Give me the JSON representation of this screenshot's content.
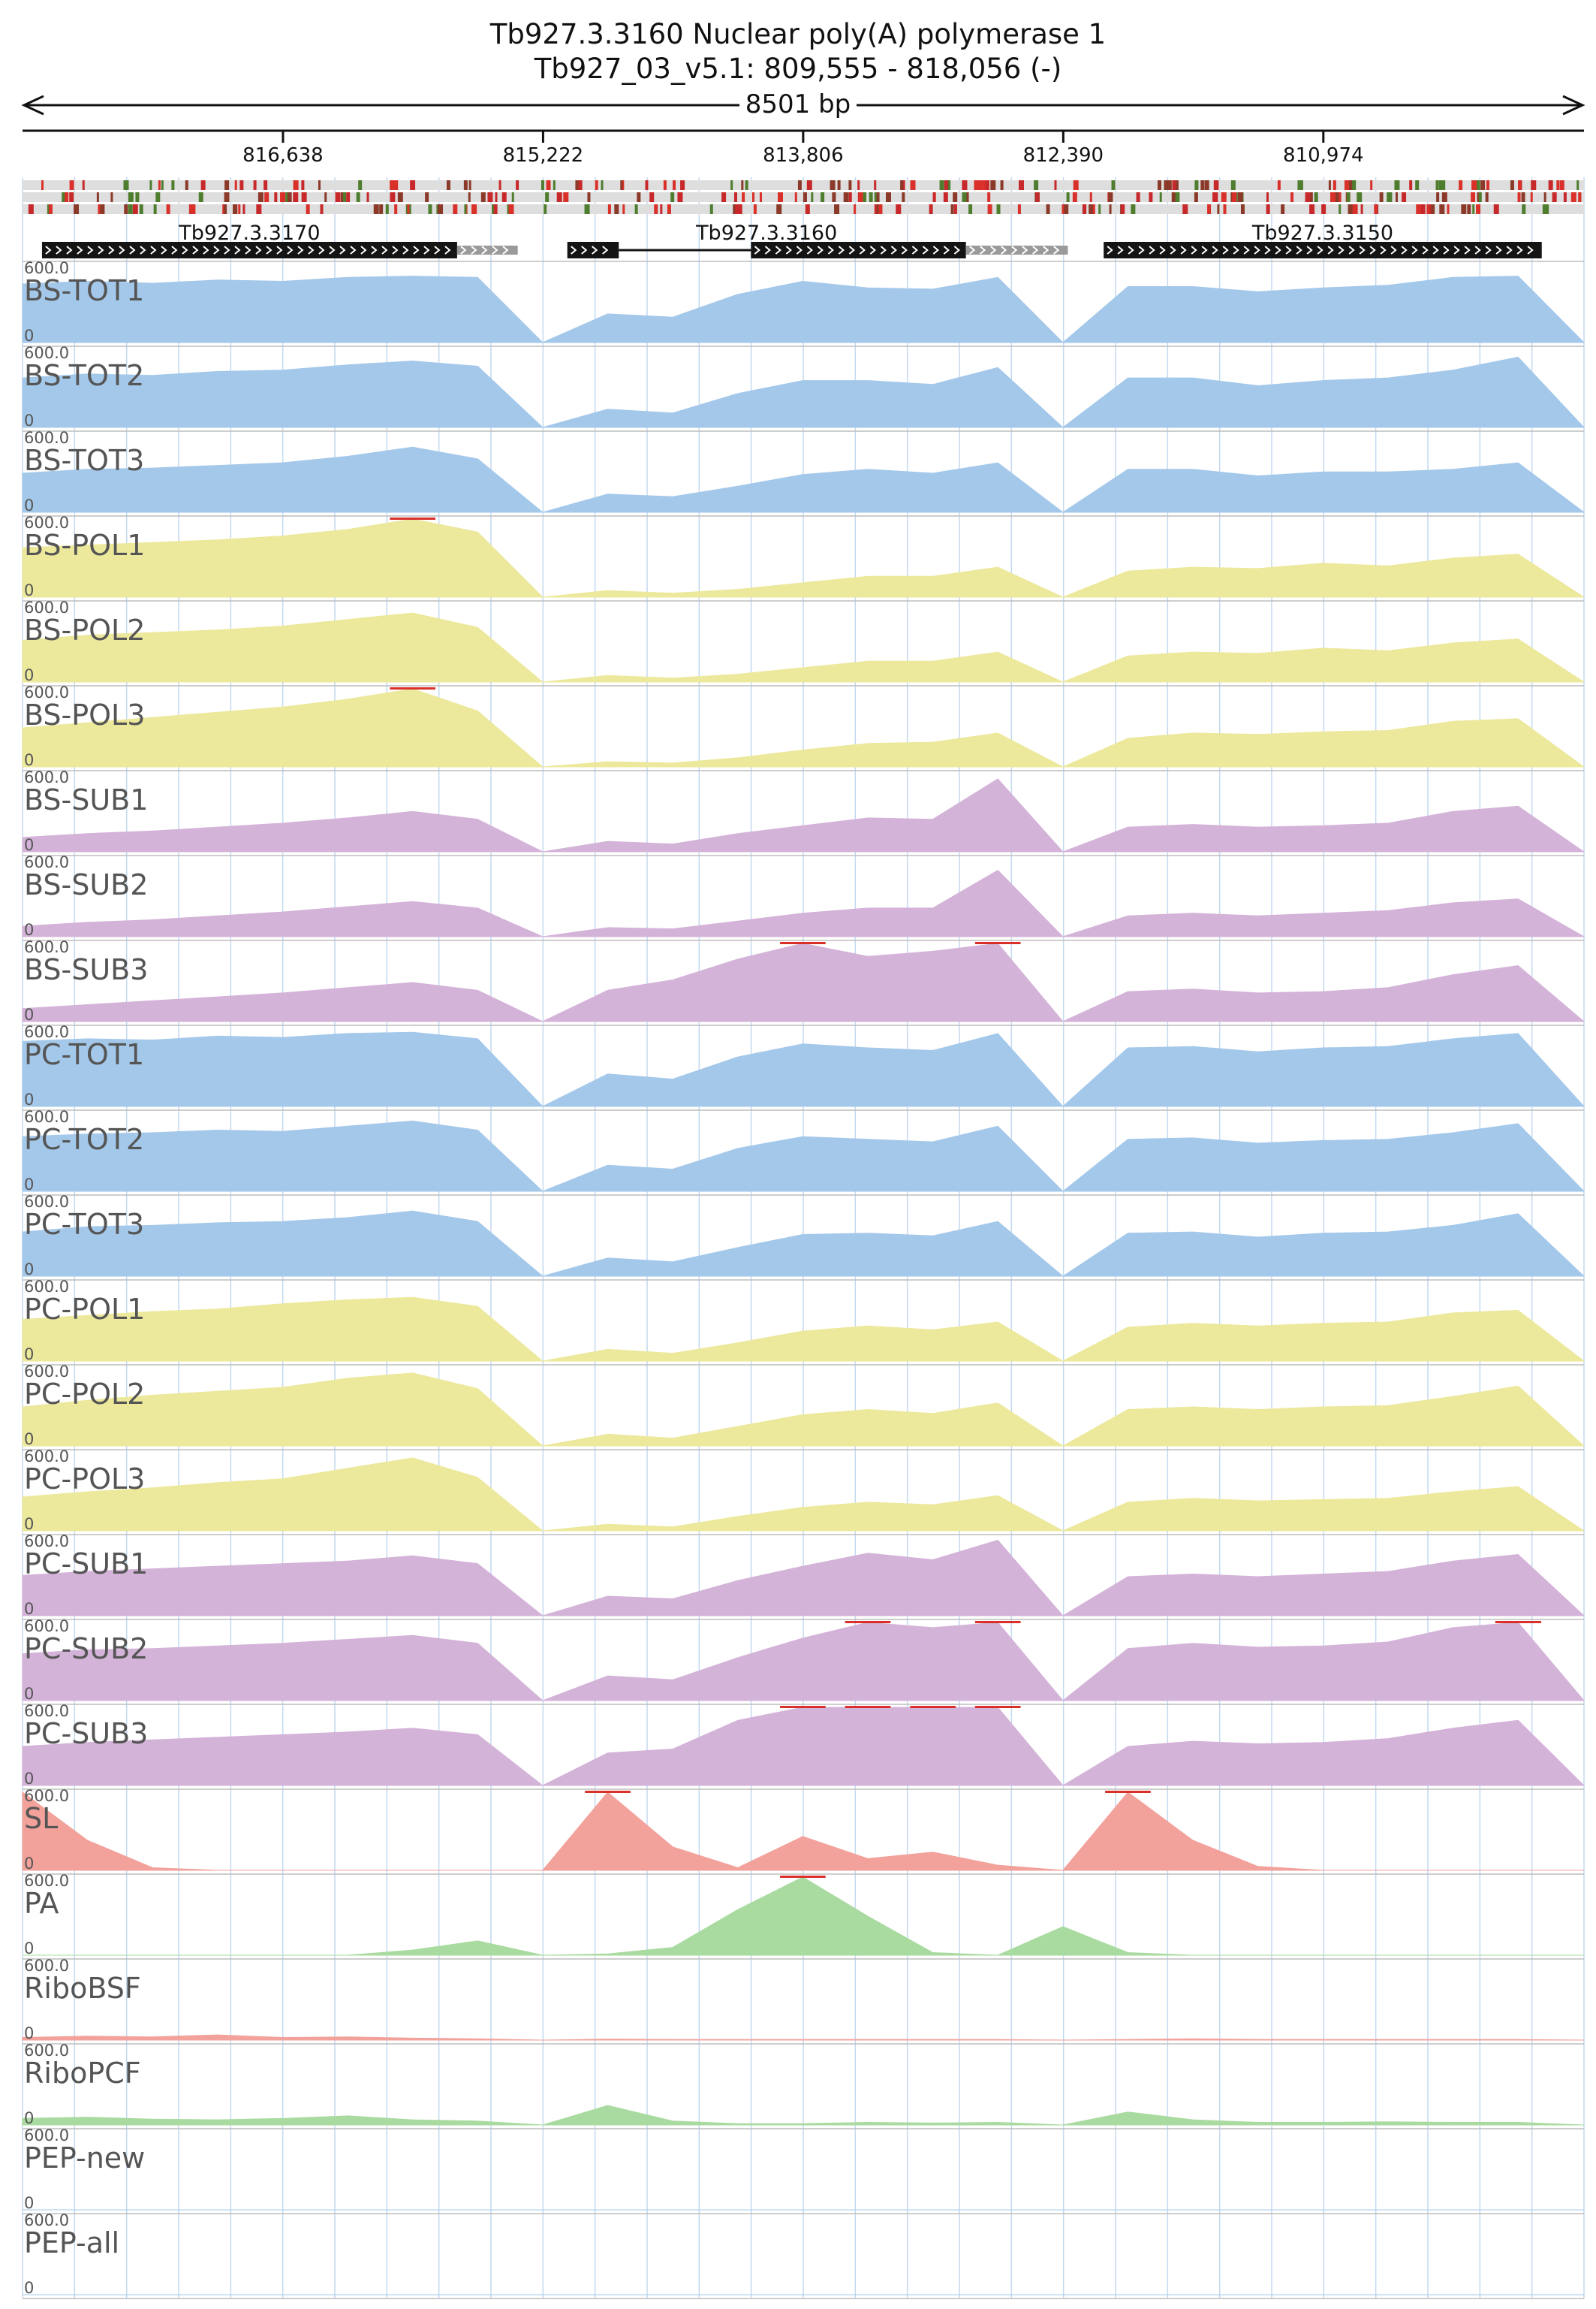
{
  "header": {
    "title": "Tb927.3.3160  Nuclear poly(A) polymerase 1",
    "subtitle": "Tb927_03_v5.1: 809,555 - 818,056 (-)",
    "span_label": "8501 bp"
  },
  "colors": {
    "tot": "#a4c8ea",
    "pol": "#ece89c",
    "sub": "#d4b3d9",
    "sl": "#f2a19b",
    "pa": "#a9dba0",
    "ribo_bsf": "#f2a19b",
    "ribo_pcf": "#a9dba0",
    "clip": "#d9302a",
    "gene": "#141414",
    "utr": "#9a9a9a",
    "grid": "#c3d9ef"
  },
  "genes": [
    {
      "name": "Tb927.3.3170",
      "cds": [
        817950,
        815690
      ],
      "utr": [
        815690,
        815360
      ],
      "strand": "-"
    },
    {
      "name": "Tb927.3.3160",
      "cds_segments": [
        [
          815090,
          814810
        ],
        [
          814090,
          812920
        ]
      ],
      "intron": [
        814810,
        814090
      ],
      "utr": [
        812920,
        812365
      ],
      "strand": "-"
    },
    {
      "name": "Tb927.3.3150",
      "cds": [
        812170,
        809785
      ],
      "utr": [],
      "strand": "-"
    }
  ],
  "chart_data": {
    "type": "area",
    "title": "Tb927.3.3160  Nuclear poly(A) polymerase 1",
    "subtitle": "Tb927_03_v5.1: 809,555 - 818,056 (-)",
    "xlabel": "8501 bp",
    "xlim": [
      818056,
      809555
    ],
    "x_axis_reversed": true,
    "x_ticks": [
      816638,
      815222,
      813806,
      812390,
      810974
    ],
    "x_tick_labels": [
      "816,638",
      "815,222",
      "813,806",
      "812,390",
      "810,974"
    ],
    "ylim": [
      0,
      600
    ],
    "y_tick_labels": [
      "600.0",
      "0"
    ],
    "grid": true,
    "x": [
      818056,
      817702,
      817348,
      816994,
      816640,
      816286,
      815932,
      815578,
      815224,
      814870,
      814516,
      814162,
      813808,
      813454,
      813100,
      812746,
      812392,
      812038,
      811684,
      811330,
      810976,
      810622,
      810268,
      809914,
      809555
    ],
    "series": [
      {
        "name": "BS-TOT1",
        "color_key": "tot",
        "values": [
          450,
          470,
          455,
          480,
          470,
          500,
          510,
          500,
          0,
          220,
          195,
          370,
          470,
          420,
          410,
          500,
          0,
          430,
          430,
          390,
          420,
          440,
          500,
          510,
          0
        ]
      },
      {
        "name": "BS-TOT2",
        "color_key": "tot",
        "values": [
          380,
          410,
          400,
          430,
          440,
          480,
          510,
          470,
          0,
          140,
          110,
          260,
          360,
          360,
          330,
          460,
          0,
          380,
          380,
          320,
          360,
          380,
          440,
          540,
          0
        ]
      },
      {
        "name": "BS-TOT3",
        "color_key": "tot",
        "values": [
          300,
          330,
          340,
          360,
          380,
          430,
          500,
          410,
          0,
          140,
          120,
          200,
          290,
          330,
          300,
          380,
          0,
          330,
          330,
          280,
          310,
          310,
          330,
          380,
          0
        ]
      },
      {
        "name": "BS-POL1",
        "color_key": "pol",
        "values": [
          380,
          400,
          420,
          440,
          470,
          520,
          680,
          500,
          0,
          50,
          30,
          60,
          110,
          160,
          160,
          230,
          0,
          200,
          230,
          220,
          260,
          240,
          300,
          330,
          0
        ]
      },
      {
        "name": "BS-POL2",
        "color_key": "pol",
        "values": [
          320,
          360,
          380,
          400,
          430,
          480,
          530,
          420,
          0,
          50,
          30,
          60,
          110,
          160,
          160,
          230,
          0,
          200,
          230,
          220,
          260,
          240,
          300,
          330,
          0
        ]
      },
      {
        "name": "BS-POL3",
        "color_key": "pol",
        "values": [
          300,
          340,
          380,
          420,
          460,
          520,
          600,
          430,
          0,
          40,
          30,
          70,
          130,
          180,
          190,
          260,
          0,
          220,
          260,
          250,
          270,
          280,
          350,
          370,
          0
        ]
      },
      {
        "name": "BS-SUB1",
        "color_key": "sub",
        "values": [
          110,
          140,
          160,
          190,
          220,
          260,
          310,
          250,
          0,
          80,
          60,
          140,
          200,
          260,
          250,
          560,
          0,
          190,
          210,
          190,
          200,
          220,
          310,
          350,
          0
        ]
      },
      {
        "name": "BS-SUB2",
        "color_key": "sub",
        "values": [
          80,
          110,
          130,
          160,
          190,
          230,
          270,
          220,
          0,
          70,
          60,
          120,
          180,
          220,
          220,
          510,
          0,
          160,
          180,
          160,
          180,
          200,
          260,
          290,
          0
        ]
      },
      {
        "name": "BS-SUB3",
        "color_key": "sub",
        "values": [
          100,
          130,
          160,
          190,
          220,
          260,
          300,
          240,
          0,
          240,
          320,
          480,
          600,
          500,
          540,
          600,
          0,
          230,
          250,
          220,
          230,
          260,
          360,
          430,
          0
        ]
      },
      {
        "name": "PC-TOT1",
        "color_key": "tot",
        "values": [
          500,
          520,
          510,
          540,
          530,
          560,
          570,
          520,
          0,
          250,
          210,
          380,
          480,
          450,
          430,
          560,
          0,
          450,
          460,
          420,
          450,
          460,
          520,
          560,
          0
        ]
      },
      {
        "name": "PC-TOT2",
        "color_key": "tot",
        "values": [
          420,
          440,
          450,
          470,
          460,
          500,
          540,
          470,
          0,
          200,
          170,
          330,
          420,
          400,
          380,
          500,
          0,
          400,
          410,
          370,
          390,
          400,
          450,
          520,
          0
        ]
      },
      {
        "name": "PC-TOT3",
        "color_key": "tot",
        "values": [
          340,
          380,
          390,
          410,
          420,
          450,
          500,
          420,
          0,
          140,
          110,
          220,
          320,
          330,
          310,
          420,
          0,
          330,
          340,
          300,
          330,
          340,
          390,
          480,
          0
        ]
      },
      {
        "name": "PC-POL1",
        "color_key": "pol",
        "values": [
          320,
          350,
          380,
          400,
          440,
          470,
          490,
          420,
          0,
          90,
          60,
          140,
          230,
          270,
          240,
          300,
          0,
          260,
          290,
          270,
          290,
          300,
          370,
          390,
          0
        ]
      },
      {
        "name": "PC-POL2",
        "color_key": "pol",
        "values": [
          300,
          350,
          390,
          420,
          450,
          520,
          560,
          440,
          0,
          90,
          60,
          150,
          240,
          280,
          250,
          330,
          0,
          280,
          300,
          280,
          300,
          310,
          380,
          460,
          0
        ]
      },
      {
        "name": "PC-POL3",
        "color_key": "pol",
        "values": [
          260,
          300,
          330,
          370,
          400,
          480,
          560,
          410,
          0,
          50,
          30,
          110,
          180,
          220,
          200,
          270,
          0,
          220,
          250,
          230,
          240,
          250,
          300,
          340,
          0
        ]
      },
      {
        "name": "PC-SUB1",
        "color_key": "sub",
        "values": [
          310,
          340,
          360,
          380,
          400,
          420,
          460,
          400,
          0,
          150,
          130,
          270,
          380,
          480,
          430,
          580,
          0,
          300,
          320,
          300,
          320,
          340,
          420,
          470,
          0
        ]
      },
      {
        "name": "PC-SUB2",
        "color_key": "sub",
        "values": [
          360,
          390,
          400,
          420,
          440,
          470,
          500,
          440,
          0,
          190,
          160,
          330,
          480,
          600,
          560,
          600,
          0,
          400,
          440,
          410,
          420,
          450,
          560,
          600,
          0
        ]
      },
      {
        "name": "PC-SUB3",
        "color_key": "sub",
        "values": [
          300,
          330,
          350,
          370,
          390,
          410,
          440,
          390,
          0,
          250,
          280,
          500,
          600,
          600,
          600,
          600,
          0,
          300,
          340,
          320,
          330,
          360,
          440,
          500,
          0
        ]
      },
      {
        "name": "SL",
        "color_key": "sl",
        "values": [
          600,
          230,
          20,
          0,
          0,
          0,
          0,
          0,
          0,
          600,
          180,
          20,
          260,
          90,
          140,
          40,
          0,
          600,
          230,
          30,
          0,
          0,
          0,
          0,
          0
        ]
      },
      {
        "name": "PA",
        "color_key": "pa",
        "values": [
          0,
          0,
          0,
          0,
          0,
          0,
          40,
          110,
          0,
          10,
          60,
          350,
          600,
          300,
          20,
          0,
          220,
          20,
          0,
          0,
          0,
          0,
          0,
          0,
          0
        ]
      },
      {
        "name": "RiboBSF",
        "color_key": "ribo_bsf",
        "values": [
          20,
          30,
          25,
          40,
          20,
          25,
          15,
          10,
          0,
          8,
          5,
          5,
          5,
          5,
          5,
          5,
          0,
          5,
          10,
          5,
          5,
          5,
          5,
          5,
          0
        ]
      },
      {
        "name": "RiboPCF",
        "color_key": "ribo_pcf",
        "values": [
          50,
          60,
          45,
          40,
          50,
          70,
          40,
          30,
          0,
          150,
          30,
          10,
          10,
          20,
          15,
          20,
          0,
          100,
          40,
          20,
          20,
          25,
          20,
          20,
          0
        ]
      },
      {
        "name": "PEP-new",
        "color_key": "tot",
        "values": [
          0,
          0,
          0,
          0,
          0,
          0,
          0,
          0,
          0,
          0,
          0,
          0,
          0,
          0,
          0,
          0,
          0,
          0,
          0,
          0,
          0,
          0,
          0,
          0,
          0
        ]
      },
      {
        "name": "PEP-all",
        "color_key": "tot",
        "values": [
          0,
          0,
          0,
          0,
          0,
          0,
          0,
          0,
          0,
          0,
          0,
          0,
          0,
          0,
          0,
          0,
          0,
          0,
          0,
          0,
          0,
          0,
          0,
          0,
          0
        ]
      }
    ]
  }
}
